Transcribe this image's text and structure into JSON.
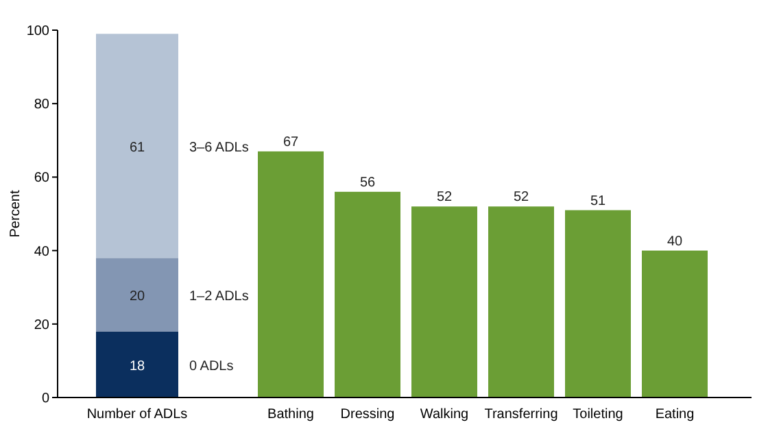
{
  "chart_data": {
    "type": "bar",
    "stacked": true,
    "ylabel": "Percent",
    "categories": [
      "Number of ADLs",
      "Bathing",
      "Dressing",
      "Walking",
      "Transferring",
      "Toileting",
      "Eating"
    ],
    "series": [
      {
        "name": "0 ADLs",
        "color": "#0b2f5e",
        "values": [
          18,
          null,
          null,
          null,
          null,
          null,
          null
        ]
      },
      {
        "name": "1–2 ADLs",
        "color": "#8396b3",
        "values": [
          20,
          null,
          null,
          null,
          null,
          null,
          null
        ]
      },
      {
        "name": "3–6 ADLs",
        "color": "#b5c3d5",
        "values": [
          61,
          null,
          null,
          null,
          null,
          null,
          null
        ]
      },
      {
        "color": "#6b9e35",
        "values": [
          null,
          67,
          56,
          52,
          52,
          51,
          40
        ]
      }
    ],
    "ylim": [
      0,
      100
    ],
    "yticks": [
      0,
      20,
      40,
      60,
      80,
      100
    ],
    "grid": false,
    "data_labels": true
  }
}
